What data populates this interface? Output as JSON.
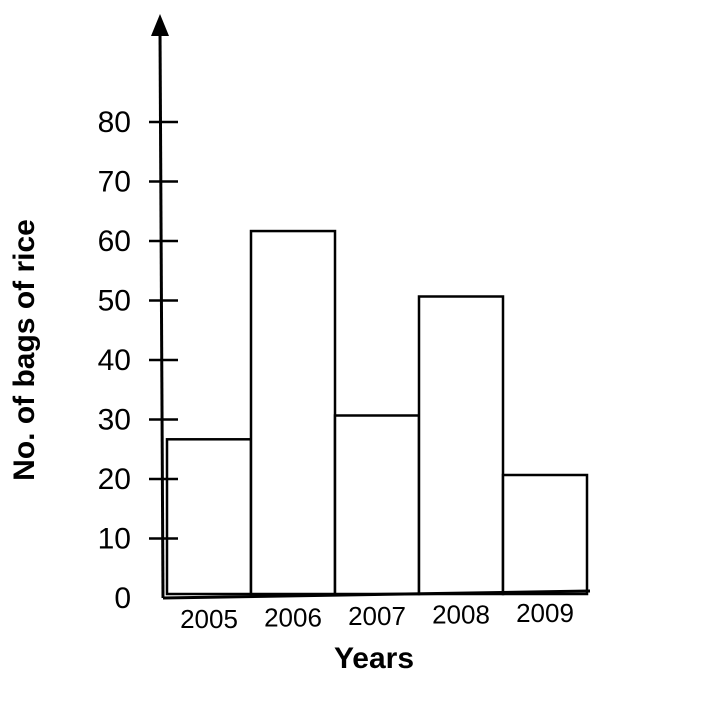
{
  "chart_data": {
    "type": "bar",
    "categories": [
      "2005",
      "2006",
      "2007",
      "2008",
      "2009"
    ],
    "values": [
      26,
      61,
      30,
      50,
      20
    ],
    "xlabel": "Years",
    "ylabel": "No. of bags of rice",
    "yticks": [
      "0",
      "10",
      "20",
      "30",
      "40",
      "50",
      "60",
      "70",
      "80"
    ],
    "ylim": [
      0,
      80
    ],
    "grid": false,
    "colors": {
      "bar_fill": "#ffffff",
      "stroke": "#000000"
    }
  }
}
